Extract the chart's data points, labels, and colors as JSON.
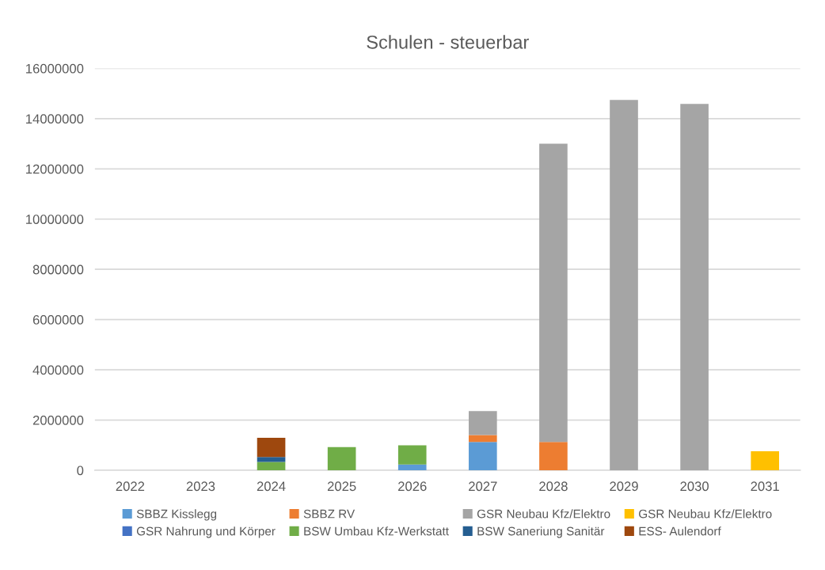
{
  "chart_data": {
    "type": "bar",
    "title": "Schulen - steuerbar",
    "stacked": true,
    "grid": "y",
    "legend": "bottom",
    "categories": [
      "2022",
      "2023",
      "2024",
      "2025",
      "2026",
      "2027",
      "2028",
      "2029",
      "2030",
      "2031"
    ],
    "ylim": [
      0,
      16000000
    ],
    "yticks": [
      0,
      2000000,
      4000000,
      6000000,
      8000000,
      10000000,
      12000000,
      14000000,
      16000000
    ],
    "series": [
      {
        "name": "SBBZ Kisslegg",
        "color": "#5b9bd5",
        "values": [
          null,
          null,
          null,
          null,
          230000,
          1130000,
          null,
          null,
          null,
          null
        ]
      },
      {
        "name": "SBBZ RV",
        "color": "#ed7d31",
        "values": [
          null,
          null,
          null,
          null,
          null,
          270000,
          1130000,
          null,
          null,
          null
        ]
      },
      {
        "name": "GSR Neubau Kfz/Elektro",
        "color": "#a5a5a5",
        "values": [
          null,
          null,
          null,
          null,
          null,
          960000,
          11870000,
          14740000,
          14590000,
          null
        ]
      },
      {
        "name": "GSR Neubau Kfz/Elektro",
        "color": "#ffc000",
        "values": [
          null,
          null,
          null,
          null,
          null,
          null,
          null,
          null,
          null,
          760000
        ]
      },
      {
        "name": "GSR Nahrung und Körper",
        "color": "#4472c4",
        "values": [
          null,
          null,
          null,
          null,
          null,
          null,
          null,
          null,
          null,
          null
        ]
      },
      {
        "name": "BSW Umbau Kfz-Werkstatt",
        "color": "#70ad47",
        "values": [
          null,
          null,
          330000,
          920000,
          760000,
          null,
          null,
          null,
          null,
          null
        ]
      },
      {
        "name": "BSW Saneriung Sanitär",
        "color": "#255e91",
        "values": [
          null,
          null,
          200000,
          null,
          null,
          null,
          null,
          null,
          null,
          null
        ]
      },
      {
        "name": "ESS- Aulendorf",
        "color": "#9e480e",
        "values": [
          null,
          null,
          760000,
          null,
          null,
          null,
          null,
          null,
          null,
          null
        ]
      }
    ]
  }
}
